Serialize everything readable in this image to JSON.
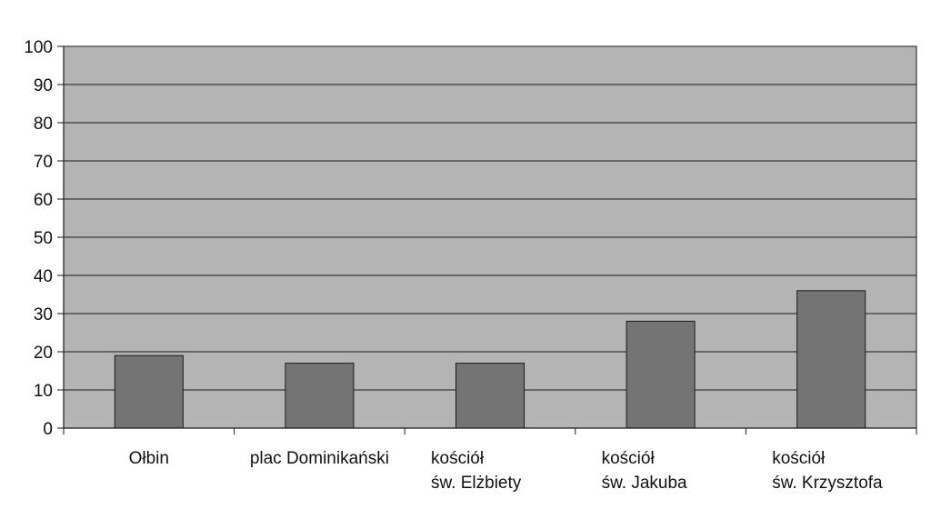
{
  "chart_data": {
    "type": "bar",
    "categories": [
      [
        "Ołbin"
      ],
      [
        "plac Dominikański"
      ],
      [
        "kościół",
        "św. Elżbiety"
      ],
      [
        "kościół",
        "św. Jakuba"
      ],
      [
        "kościół",
        "św. Krzysztofa"
      ]
    ],
    "values": [
      19,
      17,
      17,
      28,
      36
    ],
    "ylim": [
      0,
      100
    ],
    "yticks": [
      0,
      10,
      20,
      30,
      40,
      50,
      60,
      70,
      80,
      90,
      100
    ],
    "grid": true,
    "legend": "none",
    "title": "",
    "xlabel": "",
    "ylabel": ""
  },
  "colors": {
    "plot_background": "#b4b4b4",
    "bar_fill": "#747474",
    "bar_stroke": "#1a1a1a",
    "gridline": "#1a1a1a",
    "axis": "#1a1a1a"
  }
}
